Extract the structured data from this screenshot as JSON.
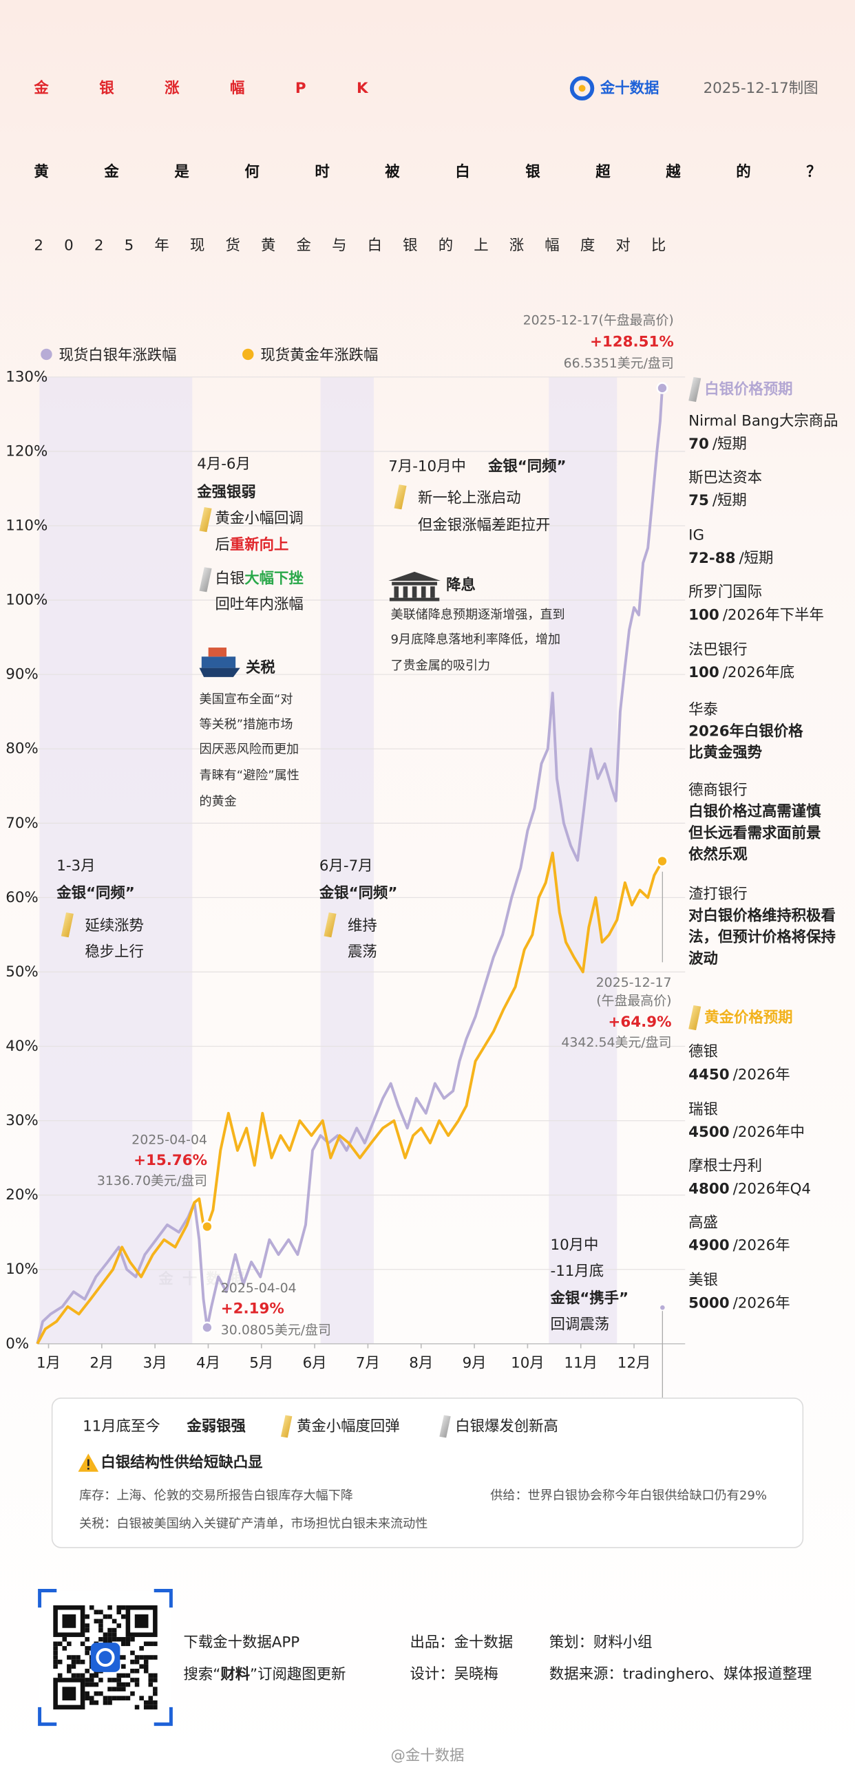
{
  "header": {
    "tag": "金银涨幅PK",
    "brand": "金十数据",
    "date": "2025-12-17制图",
    "title": "黄金是何时被白银超越的？",
    "subtitle": "2025年现货黄金与白银的上涨幅度对比"
  },
  "chart_data": {
    "type": "line",
    "grid": true,
    "legend_position": "top-left",
    "watermark": "金十数据",
    "xlim": [
      0.79,
      12.96
    ],
    "xticks": [
      {
        "value": 1,
        "label": "1月"
      },
      {
        "value": 2,
        "label": "2月"
      },
      {
        "value": 3,
        "label": "3月"
      },
      {
        "value": 4,
        "label": "4月"
      },
      {
        "value": 5,
        "label": "5月"
      },
      {
        "value": 6,
        "label": "6月"
      },
      {
        "value": 7,
        "label": "7月"
      },
      {
        "value": 8,
        "label": "8月"
      },
      {
        "value": 9,
        "label": "9月"
      },
      {
        "value": 10,
        "label": "10月"
      },
      {
        "value": 11,
        "label": "11月"
      },
      {
        "value": 12,
        "label": "12月"
      }
    ],
    "ylim": [
      0,
      130
    ],
    "yticks": [
      {
        "value": 0,
        "label": "0%"
      },
      {
        "value": 10,
        "label": "10%"
      },
      {
        "value": 20,
        "label": "20%"
      },
      {
        "value": 30,
        "label": "30%"
      },
      {
        "value": 40,
        "label": "40%"
      },
      {
        "value": 50,
        "label": "50%"
      },
      {
        "value": 60,
        "label": "60%"
      },
      {
        "value": 70,
        "label": "70%"
      },
      {
        "value": 80,
        "label": "80%"
      },
      {
        "value": 90,
        "label": "90%"
      },
      {
        "value": 100,
        "label": "100%"
      },
      {
        "value": 110,
        "label": "110%"
      },
      {
        "value": 120,
        "label": "120%"
      },
      {
        "value": 130,
        "label": "130%"
      }
    ],
    "bands": [
      {
        "x0": 0.83,
        "x1": 3.7
      },
      {
        "x0": 6.11,
        "x1": 7.11
      },
      {
        "x0": 10.4,
        "x1": 11.68
      }
    ],
    "series": [
      {
        "name": "现货白银年涨跌幅",
        "color": "#b7acd6",
        "x": [
          0.79,
          0.89,
          1.04,
          1.26,
          1.47,
          1.68,
          1.89,
          2.11,
          2.32,
          2.47,
          2.64,
          2.81,
          3.02,
          3.23,
          3.45,
          3.62,
          3.74,
          3.83,
          3.91,
          3.98,
          4.06,
          4.19,
          4.34,
          4.51,
          4.66,
          4.81,
          4.98,
          5.15,
          5.32,
          5.51,
          5.68,
          5.83,
          5.96,
          6.11,
          6.26,
          6.43,
          6.6,
          6.79,
          6.94,
          7.11,
          7.28,
          7.43,
          7.57,
          7.74,
          7.91,
          8.09,
          8.26,
          8.43,
          8.6,
          8.72,
          8.85,
          9.02,
          9.19,
          9.36,
          9.53,
          9.7,
          9.87,
          10.0,
          10.13,
          10.26,
          10.38,
          10.47,
          10.55,
          10.68,
          10.81,
          10.94,
          11.06,
          11.19,
          11.32,
          11.45,
          11.57,
          11.66,
          11.74,
          11.83,
          11.91,
          12.0,
          12.09,
          12.17,
          12.26,
          12.34,
          12.43,
          12.49,
          12.53
        ],
        "values": [
          0,
          3,
          4,
          5,
          7,
          6,
          9,
          11,
          13,
          10,
          9,
          12,
          14,
          16,
          15,
          17,
          19,
          14,
          6,
          2.19,
          5,
          9,
          7,
          12,
          8,
          11,
          9,
          14,
          12,
          14,
          12,
          16,
          26,
          28,
          27,
          28,
          26,
          29,
          27,
          30,
          33,
          35,
          32,
          29,
          33,
          31,
          35,
          33,
          34,
          38,
          41,
          44,
          48,
          52,
          55,
          60,
          64,
          69,
          72,
          78,
          80,
          87.5,
          76,
          70,
          67,
          65,
          72,
          80,
          76,
          78,
          75,
          73,
          85,
          91,
          96,
          99,
          98,
          105,
          107,
          113,
          120,
          124,
          128.51
        ]
      },
      {
        "name": "现货黄金年涨跌幅",
        "color": "#f6b31b",
        "x": [
          0.79,
          0.94,
          1.15,
          1.36,
          1.57,
          1.79,
          2.0,
          2.21,
          2.38,
          2.53,
          2.74,
          2.96,
          3.17,
          3.38,
          3.6,
          3.74,
          3.83,
          3.91,
          3.98,
          4.09,
          4.23,
          4.38,
          4.55,
          4.72,
          4.87,
          5.02,
          5.19,
          5.36,
          5.53,
          5.72,
          5.94,
          6.15,
          6.3,
          6.47,
          6.64,
          6.85,
          7.06,
          7.28,
          7.49,
          7.7,
          7.85,
          8.0,
          8.17,
          8.34,
          8.51,
          8.7,
          8.85,
          9.02,
          9.19,
          9.36,
          9.55,
          9.77,
          9.94,
          10.09,
          10.21,
          10.34,
          10.47,
          10.6,
          10.72,
          10.87,
          11.04,
          11.15,
          11.28,
          11.4,
          11.53,
          11.68,
          11.83,
          11.96,
          12.11,
          12.26,
          12.38,
          12.53
        ],
        "values": [
          0,
          2,
          3,
          5,
          4,
          6,
          8,
          10,
          13,
          11,
          9,
          12,
          14,
          13,
          16,
          19,
          19.5,
          16,
          15.76,
          18,
          26,
          31,
          26,
          29,
          24,
          31,
          25,
          28,
          26,
          30,
          28,
          30,
          25,
          28,
          27,
          25,
          27,
          29,
          30,
          25,
          28,
          29,
          27,
          30,
          28,
          30,
          32,
          38,
          40,
          42,
          45,
          48,
          53,
          55,
          60,
          62,
          66,
          58,
          54,
          52,
          50,
          56,
          60,
          54,
          55,
          57,
          62,
          59,
          61,
          60,
          63,
          64.9
        ]
      }
    ],
    "annotations": [
      {
        "x": 12.53,
        "y": 128.51,
        "date": "2025-12-17(午盘最高价)",
        "label": "+128.51%",
        "price": "66.5351美元/盘司"
      },
      {
        "x": 12.53,
        "y": 64.9,
        "date": [
          "2025-12-17",
          "(午盘最高价)"
        ],
        "label": "+64.9%",
        "price": "4342.54美元/盘司"
      },
      {
        "x": 3.98,
        "y": 15.76,
        "date": "2025-04-04",
        "label": "+15.76%",
        "price": "3136.70美元/盘司"
      },
      {
        "x": 3.98,
        "y": 2.19,
        "date": "2025-04-04",
        "label": "+2.19%",
        "price": "30.0805美元/盘司"
      }
    ]
  },
  "notes": [
    {
      "period": "1-3月",
      "theme": "金银“同频”",
      "lines": [
        "延续涨势",
        "稳步上行"
      ]
    },
    {
      "period": "4月-6月",
      "theme": "金强银弱",
      "gold": [
        "黄金小幅回调",
        "后",
        "重新向上"
      ],
      "silver": [
        "白银",
        "大幅下挫",
        "回吐年内涨幅"
      ]
    },
    {
      "heading": "关税",
      "lines": [
        "美国宣布全面“对",
        "等关税”措施市场",
        "因厌恶风险而更加",
        "青睐有“避险”属性",
        "的黄金"
      ]
    },
    {
      "period": "6月-7月",
      "theme": "金银“同频”",
      "lines": [
        "维持",
        "震荡"
      ]
    },
    {
      "period": "7月-10月中",
      "theme": "金银“同频”",
      "lines": [
        "新一轮上涨启动",
        "但金银涨幅差距拉开"
      ]
    },
    {
      "heading": "降息",
      "lines": [
        "美联储降息预期逐渐增强，直到",
        "9月底降息落地利率降低，增加",
        "了贵金属的吸引力"
      ]
    },
    {
      "period": [
        "10月中",
        "-11月底"
      ],
      "theme": "金银“携手”",
      "lines": [
        "回调震荡"
      ]
    }
  ],
  "silver_forecast": {
    "title": "白银价格预期",
    "items": [
      {
        "name": "Nirmal Bang大宗商品",
        "value": "70",
        "note": "/短期"
      },
      {
        "name": "斯巴达资本",
        "value": "75",
        "note": "/短期"
      },
      {
        "name": "IG",
        "value": "72-88",
        "note": "/短期"
      },
      {
        "name": "所罗门国际",
        "value": "100",
        "note": "/2026年下半年"
      },
      {
        "name": "法巴银行",
        "value": "100",
        "note": "/2026年底"
      },
      {
        "name": "华泰",
        "lines": [
          "2026年白银价格",
          "比黄金强势"
        ]
      },
      {
        "name": "德商银行",
        "lines": [
          "白银价格过高需谨慎",
          "但长远看需求面前景",
          "依然乐观"
        ]
      },
      {
        "name": "渣打银行",
        "lines": [
          "对白银价格维持积极看",
          "法，但预计价格将保持",
          "波动"
        ]
      }
    ]
  },
  "gold_forecast": {
    "title": "黄金价格预期",
    "items": [
      {
        "name": "德银",
        "value": "4450",
        "note": "/2026年"
      },
      {
        "name": "瑞银",
        "value": "4500",
        "note": "/2026年中"
      },
      {
        "name": "摩根士丹利",
        "value": "4800",
        "note": "/2026年Q4"
      },
      {
        "name": "高盛",
        "value": "4900",
        "note": "/2026年"
      },
      {
        "name": "美银",
        "value": "5000",
        "note": "/2026年"
      }
    ]
  },
  "summary": {
    "period": "11月底至今",
    "theme": "金弱银强",
    "gold": "黄金小幅度回弹",
    "silver": "白银爆发创新高",
    "headline": "白银结构性供给短缺凸显",
    "stock": "库存：上海、伦敦的交易所报告白银库存大幅下降",
    "supply": "供给：世界白银协会称今年白银供给缺口仍有29%",
    "tariff": "关税：白银被美国纳入关键矿产清单，市场担忧白银未来流动性"
  },
  "footer": {
    "download": "下载金十数据APP",
    "search": [
      "搜索“",
      "财料",
      "”订阅趣图更新"
    ],
    "producer": "出品：金十数据",
    "designer": "设计：吴晓梅",
    "planner": "策划：财料小组",
    "source": "数据来源：tradinghero、媒体报道整理",
    "weibo": "@金十数据"
  }
}
